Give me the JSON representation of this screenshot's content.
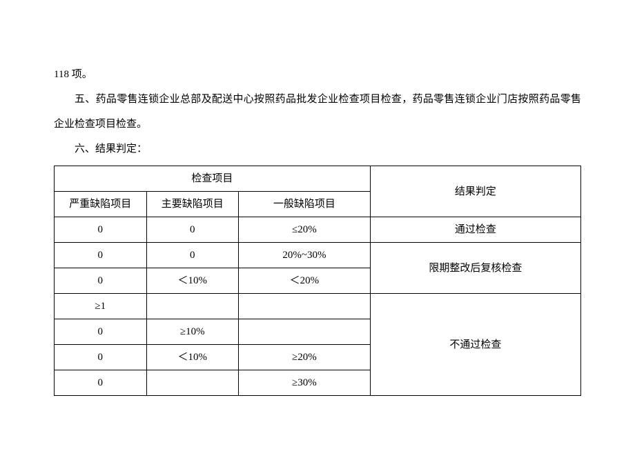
{
  "text": {
    "line1": "118 项。",
    "line2": "五、药品零售连锁企业总部及配送中心按照药品批发企业检查项目检查，药品零售连锁企业门店按照药品零售企业检查项目检查。",
    "line3": "六、结果判定："
  },
  "table": {
    "header": {
      "group": "检查项目",
      "col1": "严重缺陷项目",
      "col2": "主要缺陷项目",
      "col3": "一般缺陷项目",
      "col4": "结果判定"
    },
    "result1": "通过检查",
    "result2": "限期整改后复核检查",
    "result3": "不通过检查",
    "rows": {
      "r1c1": "0",
      "r1c2": "0",
      "r1c3": "≤20%",
      "r2c1": "0",
      "r2c2": "0",
      "r2c3": "20%~30%",
      "r3c1": "0",
      "r3c2": "＜10%",
      "r3c3": "＜20%",
      "r4c1": "≥1",
      "r4c2": "",
      "r4c3": "",
      "r5c1": "0",
      "r5c2": "≥10%",
      "r5c3": "",
      "r6c1": "0",
      "r6c2": "＜10%",
      "r6c3": "≥20%",
      "r7c1": "0",
      "r7c2": "",
      "r7c3": "≥30%"
    }
  }
}
